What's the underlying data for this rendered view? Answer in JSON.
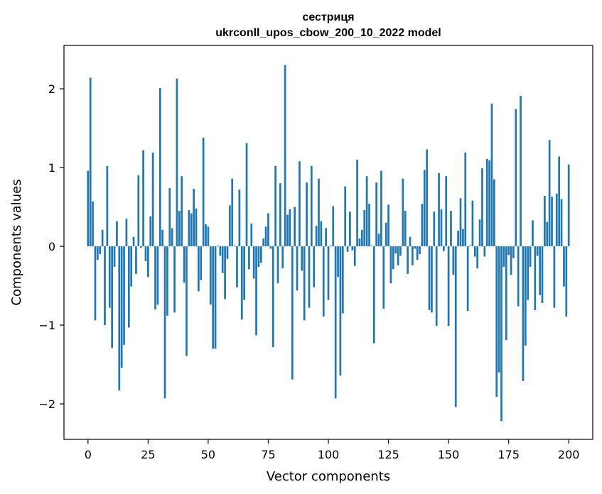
{
  "chart_data": {
    "type": "bar",
    "title": "сестриця",
    "subtitle": "ukrconll_upos_cbow_200_10_2022 model",
    "xlabel": "Vector components",
    "ylabel": "Components values",
    "xlim": [
      -10,
      210
    ],
    "ylim": [
      -2.45,
      2.55
    ],
    "xticks": [
      0,
      25,
      50,
      75,
      100,
      125,
      150,
      175,
      200
    ],
    "yticks": [
      -2,
      -1,
      0,
      1,
      2
    ],
    "ytick_labels": [
      "−2",
      "−1",
      "0",
      "1",
      "2"
    ],
    "bar_color": "#1f77b4",
    "grid": false,
    "values": [
      0.96,
      2.14,
      0.57,
      -0.94,
      -0.17,
      -0.1,
      0.21,
      -1.0,
      1.02,
      -0.78,
      -1.29,
      -0.26,
      0.32,
      -1.83,
      -1.54,
      -1.25,
      0.35,
      -1.03,
      -0.51,
      0.12,
      -0.35,
      0.9,
      -0.02,
      1.22,
      -0.19,
      -0.39,
      0.38,
      1.19,
      -0.8,
      -0.74,
      2.01,
      0.21,
      -1.93,
      -0.88,
      0.74,
      0.23,
      -0.84,
      2.13,
      0.45,
      0.89,
      -0.46,
      -1.39,
      0.46,
      0.42,
      0.73,
      0.48,
      -0.57,
      -0.43,
      1.38,
      0.28,
      0.25,
      -0.74,
      -1.3,
      -1.3,
      0.01,
      -0.12,
      -0.34,
      -0.67,
      -0.16,
      0.52,
      0.86,
      0.01,
      -0.52,
      0.72,
      -0.93,
      -0.68,
      1.31,
      -0.29,
      0.29,
      -0.41,
      -1.13,
      -0.26,
      -0.21,
      0.1,
      0.25,
      0.42,
      -0.03,
      -1.28,
      1.02,
      -0.47,
      0.8,
      -0.28,
      2.3,
      0.4,
      0.47,
      -1.69,
      0.5,
      -0.56,
      1.08,
      -0.31,
      -0.94,
      0.81,
      -0.78,
      1.02,
      -0.52,
      0.26,
      0.86,
      0.32,
      -0.89,
      0.23,
      -0.68,
      0.01,
      0.51,
      -1.93,
      -0.39,
      -1.64,
      -0.85,
      0.76,
      -0.07,
      0.44,
      -0.05,
      -0.25,
      1.1,
      0.1,
      0.21,
      0.46,
      0.89,
      0.54,
      0.01,
      -1.23,
      0.81,
      0.16,
      0.96,
      -0.79,
      0.3,
      0.53,
      -0.47,
      -0.29,
      -0.09,
      -0.24,
      -0.12,
      0.86,
      0.45,
      -0.35,
      0.12,
      -0.24,
      -0.03,
      -0.17,
      -0.1,
      0.54,
      0.97,
      1.23,
      -0.81,
      -0.84,
      0.44,
      -1.01,
      0.93,
      0.47,
      -0.06,
      0.89,
      -1.01,
      0.45,
      -0.36,
      -2.04,
      0.2,
      0.61,
      0.22,
      1.19,
      -0.82,
      0.01,
      0.58,
      -0.13,
      -0.28,
      0.34,
      0.99,
      -0.13,
      1.11,
      1.09,
      1.81,
      0.85,
      -1.91,
      -1.6,
      -2.22,
      -0.26,
      -1.19,
      -0.11,
      -0.36,
      -0.15,
      1.74,
      -0.76,
      1.91,
      -1.71,
      -1.26,
      -0.68,
      -0.26,
      0.33,
      -0.81,
      -0.12,
      -0.62,
      -0.72,
      0.64,
      0.31,
      1.35,
      0.63,
      -0.78,
      0.67,
      1.14,
      0.6,
      -0.51,
      -0.89,
      1.04
    ]
  }
}
